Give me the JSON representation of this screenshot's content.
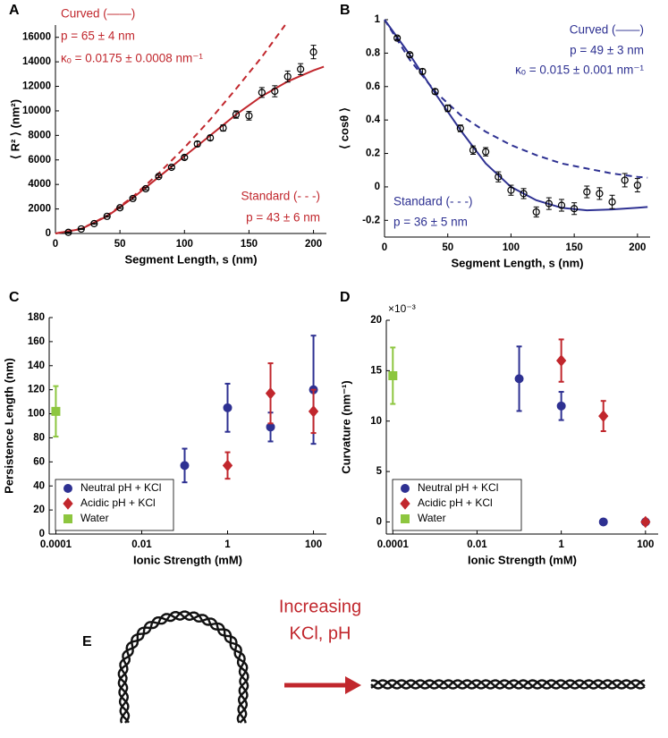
{
  "chart_data": [
    {
      "type": "line",
      "panel": "A",
      "xlabel": "Segment Length, s (nm)",
      "ylabel": "⟨ R² ⟩ (nm²)",
      "xlim": [
        0,
        210
      ],
      "xticks": [
        0,
        50,
        100,
        150,
        200
      ],
      "ylim": [
        0,
        17000
      ],
      "yticks": [
        0,
        2000,
        4000,
        6000,
        8000,
        10000,
        12000,
        14000,
        16000
      ],
      "annotations": [
        {
          "text": "Curved (——)",
          "color": "#c1272d"
        },
        {
          "text": "p = 65 ± 4 nm",
          "color": "#c1272d"
        },
        {
          "text": "κₒ = 0.0175 ± 0.0008 nm⁻¹",
          "color": "#c1272d"
        },
        {
          "text": "Standard (- - -)",
          "color": "#c1272d"
        },
        {
          "text": "p = 43 ± 6 nm",
          "color": "#c1272d"
        }
      ],
      "series": [
        {
          "marker": "line",
          "color": "#c1272d",
          "x": [
            0,
            20,
            40,
            60,
            80,
            100,
            120,
            140,
            160,
            180,
            200,
            208
          ],
          "values": [
            0,
            370,
            1400,
            2900,
            4600,
            6300,
            8000,
            9700,
            11200,
            12400,
            13300,
            13600
          ]
        },
        {
          "marker": "line",
          "dash": true,
          "color": "#c1272d",
          "x": [
            0,
            20,
            40,
            60,
            80,
            100,
            120,
            140,
            160,
            178
          ],
          "values": [
            0,
            380,
            1450,
            3000,
            4900,
            7000,
            9300,
            11800,
            14400,
            17000
          ]
        },
        {
          "marker": "circle",
          "filled": false,
          "color": "#000000",
          "x": [
            10,
            20,
            30,
            40,
            50,
            60,
            70,
            80,
            90,
            100,
            110,
            120,
            130,
            140,
            150,
            160,
            170,
            180,
            190,
            200
          ],
          "values": [
            90,
            370,
            800,
            1400,
            2100,
            2850,
            3650,
            4650,
            5400,
            6200,
            7300,
            7800,
            8600,
            9700,
            9600,
            11500,
            11600,
            12800,
            13400,
            14800
          ],
          "errors": [
            30,
            40,
            50,
            60,
            70,
            80,
            90,
            100,
            120,
            150,
            200,
            200,
            250,
            300,
            350,
            400,
            450,
            450,
            450,
            550
          ]
        }
      ]
    },
    {
      "type": "line",
      "panel": "B",
      "xlabel": "Segment Length, s (nm)",
      "ylabel": "⟨ cosθ ⟩",
      "xlim": [
        0,
        210
      ],
      "xticks": [
        0,
        50,
        100,
        150,
        200
      ],
      "ylim": [
        -0.3,
        1
      ],
      "yticks": [
        -0.2,
        0,
        0.2,
        0.4,
        0.6,
        0.8,
        1
      ],
      "annotations": [
        {
          "text": "Curved (——)",
          "color": "#2e3192"
        },
        {
          "text": "p = 49 ± 3 nm",
          "color": "#2e3192"
        },
        {
          "text": "κₒ = 0.015 ± 0.001 nm⁻¹",
          "color": "#2e3192"
        },
        {
          "text": "Standard (- - -)",
          "color": "#2e3192"
        },
        {
          "text": "p = 36 ± 5 nm",
          "color": "#2e3192"
        }
      ],
      "series": [
        {
          "marker": "line",
          "color": "#2e3192",
          "x": [
            0,
            20,
            40,
            60,
            80,
            100,
            120,
            140,
            160,
            180,
            200,
            208
          ],
          "values": [
            1,
            0.79,
            0.56,
            0.34,
            0.14,
            0,
            -0.08,
            -0.125,
            -0.14,
            -0.135,
            -0.125,
            -0.12
          ]
        },
        {
          "marker": "line",
          "dash": true,
          "color": "#2e3192",
          "x": [
            0,
            20,
            40,
            60,
            80,
            100,
            120,
            140,
            160,
            180,
            200,
            208
          ],
          "values": [
            1,
            0.76,
            0.57,
            0.43,
            0.33,
            0.25,
            0.19,
            0.14,
            0.11,
            0.08,
            0.06,
            0.055
          ]
        },
        {
          "marker": "circle",
          "filled": false,
          "color": "#000000",
          "x": [
            10,
            20,
            30,
            40,
            50,
            60,
            70,
            80,
            90,
            100,
            110,
            120,
            130,
            140,
            150,
            160,
            170,
            180,
            190,
            200
          ],
          "values": [
            0.89,
            0.79,
            0.69,
            0.57,
            0.47,
            0.35,
            0.22,
            0.21,
            0.06,
            -0.02,
            -0.04,
            -0.15,
            -0.1,
            -0.11,
            -0.13,
            -0.03,
            -0.04,
            -0.09,
            0.04,
            0.01
          ],
          "errors": [
            0.01,
            0.01,
            0.015,
            0.015,
            0.02,
            0.02,
            0.025,
            0.025,
            0.03,
            0.03,
            0.03,
            0.03,
            0.035,
            0.035,
            0.035,
            0.035,
            0.035,
            0.04,
            0.04,
            0.04
          ]
        }
      ]
    },
    {
      "type": "scatter",
      "panel": "C",
      "xlabel": "Ionic Strength (mM)",
      "ylabel": "Persistence Length (nm)",
      "xlog": true,
      "xlim": [
        7e-05,
        200
      ],
      "xticks": [
        0.0001,
        0.01,
        1,
        100
      ],
      "ylim": [
        0,
        180
      ],
      "yticks": [
        0,
        20,
        40,
        60,
        80,
        100,
        120,
        140,
        160,
        180
      ],
      "legend": "lower left",
      "series": [
        {
          "name": "Neutral pH + KCl",
          "marker": "circle",
          "filled": true,
          "color": "#2e3192",
          "x": [
            0.1,
            1,
            10,
            100
          ],
          "values": [
            57,
            105,
            89,
            120
          ],
          "errors": [
            14,
            20,
            12,
            45
          ]
        },
        {
          "name": "Acidic pH + KCl",
          "marker": "diamond",
          "filled": true,
          "color": "#c1272d",
          "x": [
            1,
            10,
            100
          ],
          "values": [
            57,
            117,
            102
          ],
          "errors": [
            11,
            25,
            18
          ]
        },
        {
          "name": "Water",
          "marker": "square",
          "filled": true,
          "color": "#8dc63f",
          "x": [
            0.0001
          ],
          "values": [
            102
          ],
          "errors": [
            21
          ]
        }
      ]
    },
    {
      "type": "scatter",
      "panel": "D",
      "xlabel": "Ionic Strength (mM)",
      "ylabel": "Curvature (nm⁻¹)",
      "y_multiplier": "×10⁻³",
      "xlog": true,
      "xlim": [
        7e-05,
        200
      ],
      "xticks": [
        0.0001,
        0.01,
        1,
        100
      ],
      "ylim": [
        -1.2,
        20
      ],
      "yticks": [
        0,
        5,
        10,
        15,
        20
      ],
      "legend": "lower left",
      "series": [
        {
          "name": "Neutral pH + KCl",
          "marker": "circle",
          "filled": true,
          "color": "#2e3192",
          "x": [
            0.1,
            1,
            10,
            100
          ],
          "values": [
            14.2,
            11.5,
            0,
            0
          ],
          "errors": [
            3.2,
            1.4,
            null,
            null
          ]
        },
        {
          "name": "Acidic pH + KCl",
          "marker": "diamond",
          "filled": true,
          "color": "#c1272d",
          "x": [
            1,
            10,
            100
          ],
          "values": [
            16,
            10.5,
            0
          ],
          "errors": [
            2.1,
            1.5,
            null
          ]
        },
        {
          "name": "Water",
          "marker": "square",
          "filled": true,
          "color": "#8dc63f",
          "x": [
            0.0001
          ],
          "values": [
            14.5
          ],
          "errors": [
            2.8
          ]
        }
      ]
    }
  ],
  "diagram": {
    "panel": "E",
    "arrow_label": [
      "Increasing",
      "KCl, pH"
    ]
  }
}
